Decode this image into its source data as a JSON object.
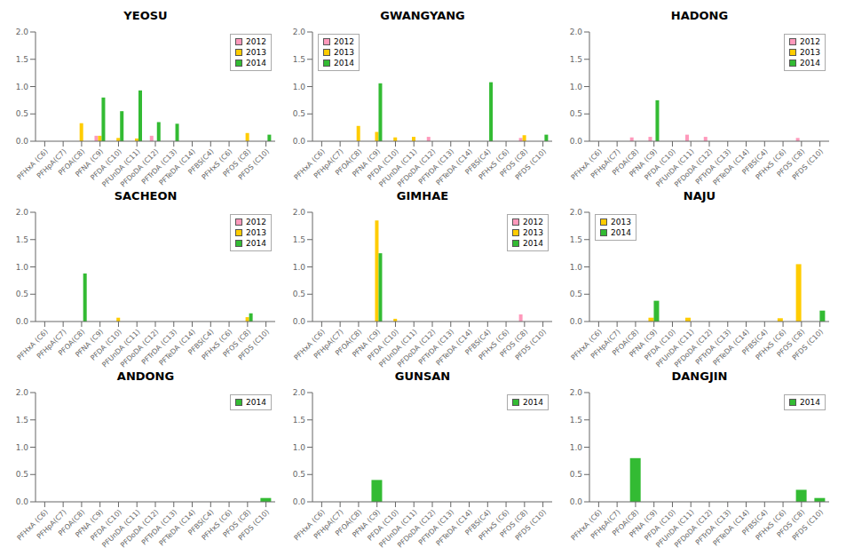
{
  "chart_data": [
    {
      "type": "bar",
      "title": "YEOSU",
      "legend": "upper right",
      "grid": false,
      "categories": [
        "PFHxA (C6)",
        "PFHpA(C7)",
        "PFOA(C8)",
        "PFNA (C9)",
        "PFDA (C10)",
        "PFUnDA (C11)",
        "PFDoDA (C12)",
        "PFTrDA (C13)",
        "PFTeDA (C14)",
        "PFBS(C4)",
        "PFHxS (C6)",
        "PFOS (C8)",
        "PFDS (C10)"
      ],
      "series": [
        {
          "name": "2012",
          "color": "#ff99bb",
          "values": [
            0,
            0,
            0,
            0.1,
            0,
            0,
            0.1,
            0,
            0,
            0,
            0,
            0,
            0
          ]
        },
        {
          "name": "2013",
          "color": "#ffcc00",
          "values": [
            0,
            0,
            0.33,
            0.1,
            0.06,
            0.05,
            0,
            0,
            0,
            0,
            0,
            0.15,
            0
          ]
        },
        {
          "name": "2014",
          "color": "#33bb33",
          "values": [
            0,
            0,
            0,
            0.8,
            0.55,
            0.93,
            0.35,
            0.32,
            0,
            0,
            0,
            0,
            0.12
          ]
        }
      ],
      "ylim": [
        0,
        2.0
      ],
      "yticks": [
        {
          "value": 0,
          "label": "0.0"
        },
        0.5,
        {
          "value": 1,
          "label": "1.0"
        },
        1.5,
        {
          "value": 2,
          "label": "2.0"
        }
      ]
    },
    {
      "type": "bar",
      "title": "GWANGYANG",
      "legend": "upper left",
      "grid": false,
      "categories": [
        "PFHxA (C6)",
        "PFHpA(C7)",
        "PFOA(C8)",
        "PFNA (C9)",
        "PFDA (C10)",
        "PFUnDA (C11)",
        "PFDoDA (C12)",
        "PFTrDA (C13)",
        "PFTeDA (C14)",
        "PFBS(C4)",
        "PFHxS (C6)",
        "PFOS (C8)",
        "PFDS (C10)"
      ],
      "series": [
        {
          "name": "2012",
          "color": "#ff99bb",
          "values": [
            0,
            0,
            0,
            0,
            0,
            0,
            0.08,
            0,
            0,
            0,
            0,
            0.06,
            0
          ]
        },
        {
          "name": "2013",
          "color": "#ffcc00",
          "values": [
            0,
            0,
            0.28,
            0.17,
            0.07,
            0.08,
            0,
            0,
            0,
            0,
            0,
            0.11,
            0
          ]
        },
        {
          "name": "2014",
          "color": "#33bb33",
          "values": [
            0,
            0,
            0,
            1.06,
            0,
            0,
            0,
            0,
            0,
            1.08,
            0,
            0,
            0.12
          ]
        }
      ],
      "ylim": [
        0,
        2.0
      ],
      "yticks": [
        {
          "value": 0,
          "label": "0.0"
        },
        0.5,
        {
          "value": 1,
          "label": "1.0"
        },
        1.5,
        {
          "value": 2,
          "label": "2.0"
        }
      ]
    },
    {
      "type": "bar",
      "title": "HADONG",
      "legend": "upper right",
      "grid": false,
      "categories": [
        "PFHxA (C6)",
        "PFHpA(C7)",
        "PFOA(C8)",
        "PFNA (C9)",
        "PFDA (C10)",
        "PFUnDA (C11)",
        "PFDoDA (C12)",
        "PFTrDA (C13)",
        "PFTeDA (C14)",
        "PFBS(C4)",
        "PFHxS (C6)",
        "PFOS (C8)",
        "PFDS (C10)"
      ],
      "series": [
        {
          "name": "2012",
          "color": "#ff99bb",
          "values": [
            0,
            0,
            0.07,
            0.08,
            0,
            0.12,
            0.08,
            0,
            0,
            0,
            0,
            0.06,
            0
          ]
        },
        {
          "name": "2013",
          "color": "#ffcc00",
          "values": [
            0,
            0,
            0,
            0,
            0,
            0,
            0,
            0,
            0,
            0,
            0,
            0,
            0
          ]
        },
        {
          "name": "2014",
          "color": "#33bb33",
          "values": [
            0,
            0,
            0,
            0.75,
            0,
            0,
            0,
            0,
            0,
            0,
            0,
            0,
            0
          ]
        }
      ],
      "ylim": [
        0,
        2.0
      ],
      "yticks": [
        {
          "value": 0,
          "label": "0.0"
        },
        0.5,
        {
          "value": 1,
          "label": "1.0"
        },
        1.5,
        {
          "value": 2,
          "label": "2.0"
        }
      ]
    },
    {
      "type": "bar",
      "title": "SACHEON",
      "legend": "upper right",
      "grid": false,
      "categories": [
        "PFHxA (C6)",
        "PFHpA(C7)",
        "PFOA(C8)",
        "PFNA (C9)",
        "PFDA (C10)",
        "PFUnDA (C11)",
        "PFDoDA (C12)",
        "PFTrDA (C13)",
        "PFTeDA (C14)",
        "PFBS(C4)",
        "PFHxS (C6)",
        "PFOS (C8)",
        "PFDS (C10)"
      ],
      "series": [
        {
          "name": "2012",
          "color": "#ff99bb",
          "values": [
            0,
            0,
            0,
            0,
            0,
            0,
            0,
            0,
            0,
            0,
            0,
            0,
            0
          ]
        },
        {
          "name": "2013",
          "color": "#ffcc00",
          "values": [
            0,
            0,
            0,
            0,
            0.07,
            0,
            0,
            0,
            0,
            0,
            0,
            0.08,
            0
          ]
        },
        {
          "name": "2014",
          "color": "#33bb33",
          "values": [
            0,
            0,
            0.88,
            0,
            0,
            0,
            0,
            0,
            0,
            0,
            0,
            0.15,
            0
          ]
        }
      ],
      "ylim": [
        0,
        2.0
      ],
      "yticks": [
        {
          "value": 0,
          "label": "0.0"
        },
        0.5,
        {
          "value": 1,
          "label": "1.0"
        },
        1.5,
        {
          "value": 2,
          "label": "2.0"
        }
      ]
    },
    {
      "type": "bar",
      "title": "GIMHAE",
      "legend": "upper right",
      "grid": false,
      "categories": [
        "PFHxA (C6)",
        "PFHpA(C7)",
        "PFOA(C8)",
        "PFNA (C9)",
        "PFDA (C10)",
        "PFUnDA (C11)",
        "PFDoDA (C12)",
        "PFTrDA (C13)",
        "PFTeDA (C14)",
        "PFBS(C4)",
        "PFHxS (C6)",
        "PFOS (C8)",
        "PFDS (C10)"
      ],
      "series": [
        {
          "name": "2012",
          "color": "#ff99bb",
          "values": [
            0,
            0,
            0,
            0,
            0,
            0,
            0,
            0,
            0,
            0,
            0,
            0.13,
            0
          ]
        },
        {
          "name": "2013",
          "color": "#ffcc00",
          "values": [
            0,
            0,
            0,
            1.85,
            0.05,
            0,
            0,
            0,
            0,
            0,
            0,
            0,
            0
          ]
        },
        {
          "name": "2014",
          "color": "#33bb33",
          "values": [
            0,
            0,
            0,
            1.25,
            0,
            0,
            0,
            0,
            0,
            0,
            0,
            0,
            0
          ]
        }
      ],
      "ylim": [
        0,
        2.0
      ],
      "yticks": [
        {
          "value": 0,
          "label": "0.0"
        },
        0.5,
        {
          "value": 1,
          "label": "1.0"
        },
        1.5,
        {
          "value": 2,
          "label": "2.0"
        }
      ]
    },
    {
      "type": "bar",
      "title": "NAJU",
      "legend": "upper left",
      "grid": false,
      "categories": [
        "PFHxA (C6)",
        "PFHpA(C7)",
        "PFOA(C8)",
        "PFNA (C9)",
        "PFDA (C10)",
        "PFUnDA (C11)",
        "PFDoDA (C12)",
        "PFTrDA (C13)",
        "PFTeDA (C14)",
        "PFBS(C4)",
        "PFHxS (C6)",
        "PFOS (C8)",
        "PFDS (C10)"
      ],
      "series": [
        {
          "name": "2013",
          "color": "#ffcc00",
          "values": [
            0,
            0,
            0,
            0.07,
            0,
            0.07,
            0,
            0,
            0,
            0,
            0.06,
            1.05,
            0
          ]
        },
        {
          "name": "2014",
          "color": "#33bb33",
          "values": [
            0,
            0,
            0,
            0.38,
            0,
            0,
            0,
            0,
            0,
            0,
            0,
            0,
            0.2
          ]
        }
      ],
      "ylim": [
        0,
        2.0
      ],
      "yticks": [
        {
          "value": 0,
          "label": "0.0"
        },
        0.5,
        {
          "value": 1,
          "label": "1.0"
        },
        1.5,
        {
          "value": 2,
          "label": "2.0"
        }
      ]
    },
    {
      "type": "bar",
      "title": "ANDONG",
      "legend": "upper right",
      "grid": false,
      "categories": [
        "PFHxA (C6)",
        "PFHpA(C7)",
        "PFOA(C8)",
        "PFNA (C9)",
        "PFDA (C10)",
        "PFUnDA (C11)",
        "PFDoDA (C12)",
        "PFTrDA (C13)",
        "PFTeDA (C14)",
        "PFBS(C4)",
        "PFHxS (C6)",
        "PFOS (C8)",
        "PFDS (C10)"
      ],
      "series": [
        {
          "name": "2014",
          "color": "#33bb33",
          "values": [
            0,
            0,
            0,
            0,
            0,
            0,
            0,
            0,
            0,
            0,
            0,
            0,
            0.07
          ]
        }
      ],
      "ylim": [
        0,
        2.0
      ],
      "yticks": [
        {
          "value": 0,
          "label": "0.0"
        },
        0.5,
        {
          "value": 1,
          "label": "1.0"
        },
        1.5,
        {
          "value": 2,
          "label": "2.0"
        }
      ]
    },
    {
      "type": "bar",
      "title": "GUNSAN",
      "legend": "upper right",
      "grid": false,
      "categories": [
        "PFHxA (C6)",
        "PFHpA(C7)",
        "PFOA(C8)",
        "PFNA (C9)",
        "PFDA (C10)",
        "PFUnDA (C11)",
        "PFDoDA (C12)",
        "PFTrDA (C13)",
        "PFTeDA (C14)",
        "PFBS(C4)",
        "PFHxS (C6)",
        "PFOS (C8)",
        "PFDS (C10)"
      ],
      "series": [
        {
          "name": "2014",
          "color": "#33bb33",
          "values": [
            0,
            0,
            0,
            0.4,
            0,
            0,
            0,
            0,
            0,
            0,
            0,
            0,
            0
          ]
        }
      ],
      "ylim": [
        0,
        2.0
      ],
      "yticks": [
        {
          "value": 0,
          "label": "0.0"
        },
        0.5,
        {
          "value": 1,
          "label": "1.0"
        },
        1.5,
        {
          "value": 2,
          "label": "2.0"
        }
      ]
    },
    {
      "type": "bar",
      "title": "DANGJIN",
      "legend": "upper right",
      "grid": false,
      "categories": [
        "PFHxA (C6)",
        "PFHpA(C7)",
        "PFOA(C8)",
        "PFNA (C9)",
        "PFDA (C10)",
        "PFUnDA (C11)",
        "PFDoDA (C12)",
        "PFTrDA (C13)",
        "PFTeDA (C14)",
        "PFBS(C4)",
        "PFHxS (C6)",
        "PFOS (C8)",
        "PFDS (C10)"
      ],
      "series": [
        {
          "name": "2014",
          "color": "#33bb33",
          "values": [
            0,
            0,
            0.8,
            0,
            0,
            0,
            0,
            0,
            0,
            0,
            0,
            0.22,
            0.07
          ]
        }
      ],
      "ylim": [
        0,
        2.0
      ],
      "yticks": [
        {
          "value": 0,
          "label": "0.0"
        },
        0.5,
        {
          "value": 1,
          "label": "1.0"
        },
        1.5,
        {
          "value": 2,
          "label": "2.0"
        }
      ]
    }
  ]
}
